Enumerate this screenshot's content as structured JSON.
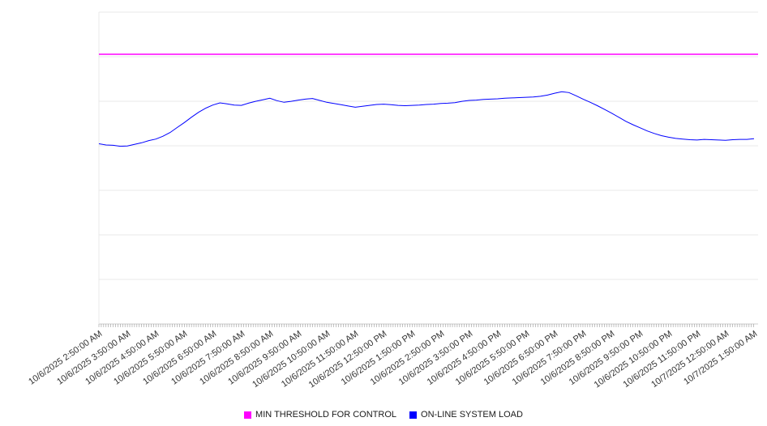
{
  "legend": {
    "items": [
      {
        "label": "MIN THRESHOLD FOR CONTROL",
        "color": "#ff00ff"
      },
      {
        "label": "ON-LINE SYSTEM LOAD",
        "color": "#0000ff"
      }
    ]
  },
  "chart_data": {
    "type": "line",
    "title": "",
    "xlabel": "",
    "ylabel": "",
    "grid": true,
    "legend_position": "bottom",
    "ylim": [
      0,
      100
    ],
    "y_gridline_divisions": 7,
    "x_tick_interval_hours": 1,
    "x_minor_tick_interval_hours": 0.0833,
    "x_tick_labels": [
      "10/6/2025 2:50:00 AM",
      "10/6/2025 3:50:00 AM",
      "10/6/2025 4:50:00 AM",
      "10/6/2025 5:50:00 AM",
      "10/6/2025 6:50:00 AM",
      "10/6/2025 7:50:00 AM",
      "10/6/2025 8:50:00 AM",
      "10/6/2025 9:50:00 AM",
      "10/6/2025 10:50:00 AM",
      "10/6/2025 11:50:00 AM",
      "10/6/2025 12:50:00 PM",
      "10/6/2025 1:50:00 PM",
      "10/6/2025 2:50:00 PM",
      "10/6/2025 3:50:00 PM",
      "10/6/2025 4:50:00 PM",
      "10/6/2025 5:50:00 PM",
      "10/6/2025 6:50:00 PM",
      "10/6/2025 7:50:00 PM",
      "10/6/2025 8:50:00 PM",
      "10/6/2025 9:50:00 PM",
      "10/6/2025 10:50:00 PM",
      "10/6/2025 11:50:00 PM",
      "10/7/2025 12:50:00 AM",
      "10/7/2025 1:50:00 AM"
    ],
    "series": [
      {
        "name": "MIN THRESHOLD FOR CONTROL",
        "color": "#ff00ff",
        "style": "constant",
        "value": 86.5
      },
      {
        "name": "ON-LINE SYSTEM LOAD",
        "color": "#0000ff",
        "style": "line",
        "x_start_hours": 0,
        "x_step_hours": 0.25,
        "values": [
          57.8,
          57.4,
          57.3,
          57.0,
          57.1,
          57.6,
          58.1,
          58.8,
          59.3,
          60.2,
          61.4,
          63.0,
          64.6,
          66.3,
          67.9,
          69.2,
          70.2,
          70.9,
          70.6,
          70.2,
          70.1,
          70.8,
          71.4,
          71.9,
          72.4,
          71.6,
          71.1,
          71.4,
          71.8,
          72.1,
          72.3,
          71.7,
          71.1,
          70.7,
          70.3,
          69.9,
          69.5,
          69.8,
          70.1,
          70.4,
          70.5,
          70.3,
          70.1,
          70.0,
          70.1,
          70.2,
          70.4,
          70.5,
          70.7,
          70.8,
          71.0,
          71.4,
          71.7,
          71.8,
          72.0,
          72.1,
          72.2,
          72.4,
          72.5,
          72.6,
          72.7,
          72.8,
          73.0,
          73.4,
          74.0,
          74.5,
          74.2,
          73.2,
          72.1,
          71.1,
          70.0,
          68.8,
          67.6,
          66.3,
          65.0,
          63.9,
          62.9,
          61.9,
          61.1,
          60.4,
          59.9,
          59.5,
          59.3,
          59.1,
          59.0,
          59.2,
          59.1,
          59.0,
          58.9,
          59.1,
          59.2,
          59.2,
          59.4
        ]
      }
    ],
    "colors": {
      "gridline": "#e8e8e8",
      "axis": "#cccccc",
      "tick": "#999999"
    }
  }
}
